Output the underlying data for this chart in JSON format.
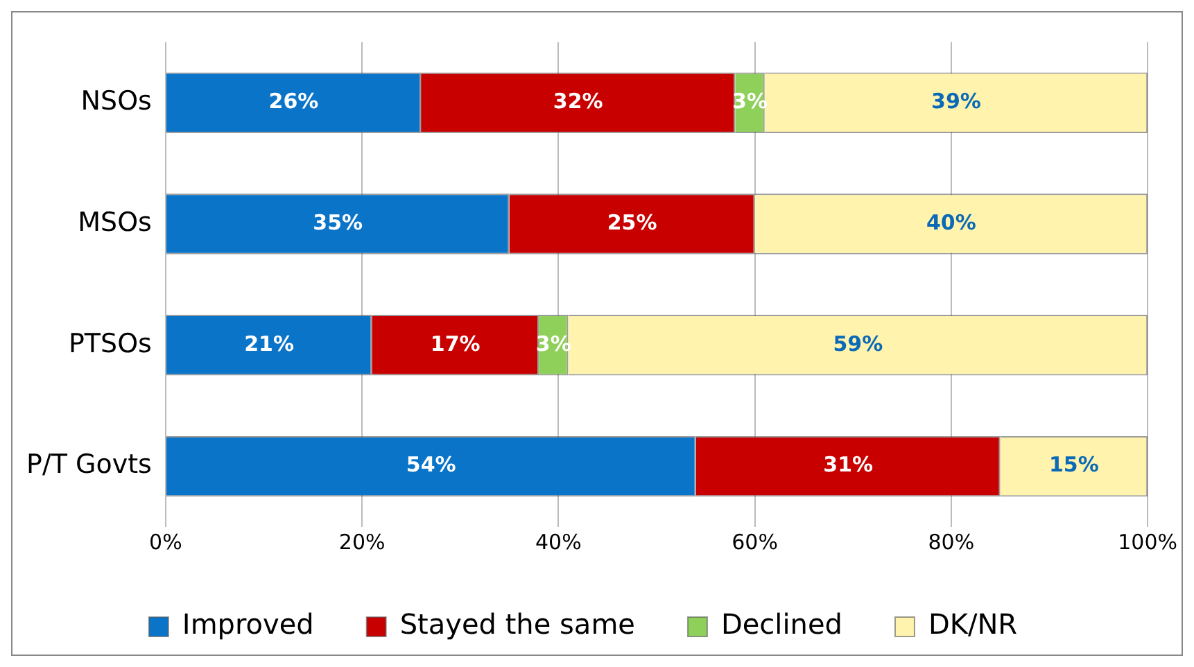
{
  "chart_data": {
    "type": "bar",
    "orientation": "horizontal",
    "stacked": true,
    "categories": [
      "NSOs",
      "MSOs",
      "PTSOs",
      "P/T Govts"
    ],
    "series": [
      {
        "name": "Improved",
        "color": "#0a74c9",
        "values": [
          26,
          35,
          21,
          54
        ],
        "value_labels": [
          "26%",
          "35%",
          "21%",
          "54%"
        ]
      },
      {
        "name": "Stayed the same",
        "color": "#c80000",
        "values": [
          32,
          25,
          17,
          31
        ],
        "value_labels": [
          "32%",
          "25%",
          "17%",
          "31%"
        ]
      },
      {
        "name": "Declined",
        "color": "#8fd05a",
        "values": [
          3,
          null,
          3,
          null
        ],
        "value_labels": [
          "3%",
          null,
          "3%",
          null
        ]
      },
      {
        "name": "DK/NR",
        "color": "#fff3ad",
        "values": [
          39,
          40,
          59,
          15
        ],
        "value_labels": [
          "39%",
          "40%",
          "59%",
          "15%"
        ]
      }
    ],
    "xlim": [
      0,
      100
    ],
    "xticks": [
      {
        "value": 0,
        "label": "0%"
      },
      {
        "value": 20,
        "label": "20%"
      },
      {
        "value": 40,
        "label": "40%"
      },
      {
        "value": 60,
        "label": "60%"
      },
      {
        "value": 80,
        "label": "80%"
      },
      {
        "value": 100,
        "label": "100%"
      }
    ],
    "grid": "x",
    "legend": "bottom"
  }
}
